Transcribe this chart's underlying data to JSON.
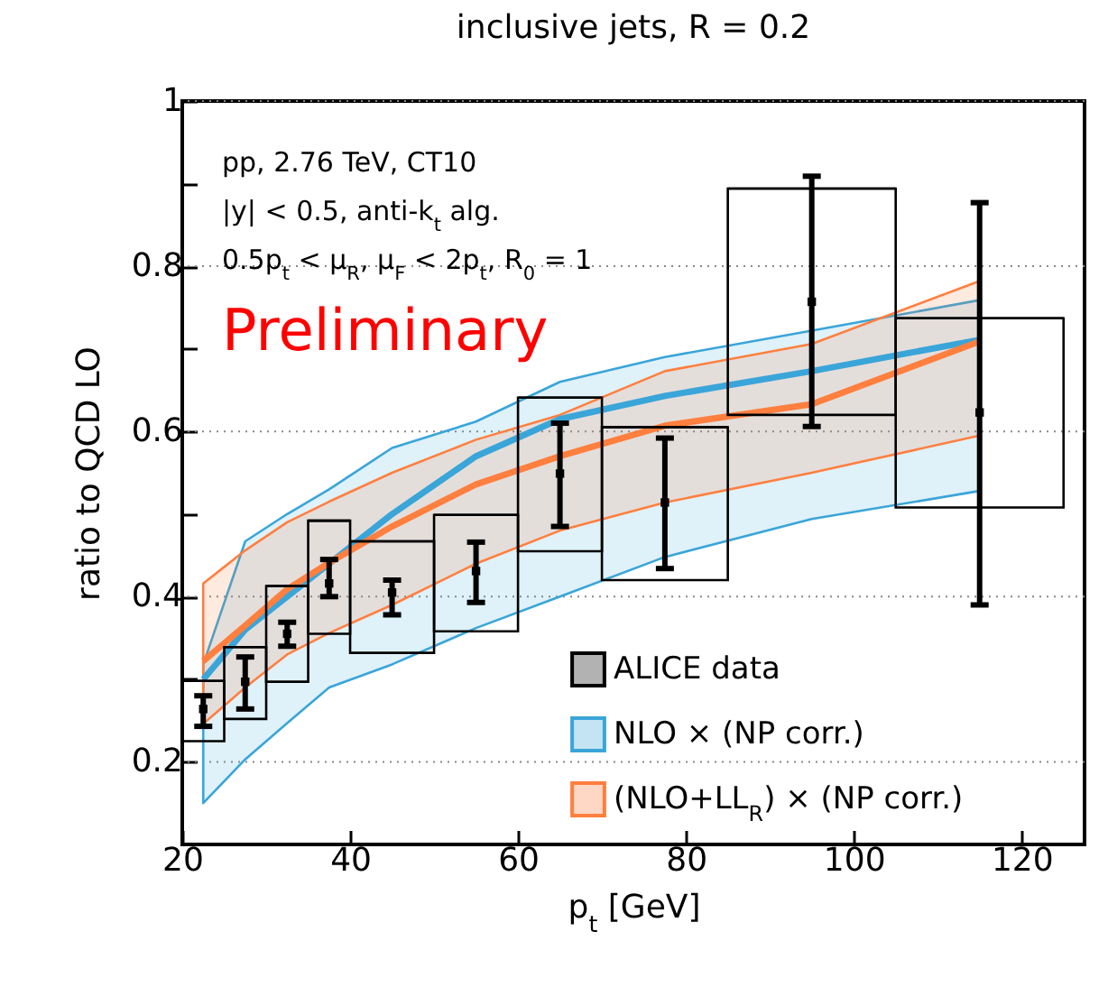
{
  "chart_data": {
    "type": "line",
    "title": "inclusive jets, R = 0.2",
    "xlabel": "p$_{t}$ [GeV]",
    "ylabel": "ratio to QCD LO",
    "xlim": [
      20,
      127.5
    ],
    "ylim": [
      0.1,
      1
    ],
    "xticks": [
      20,
      40,
      60,
      80,
      100,
      120
    ],
    "yticks": [
      0.2,
      {
        "value": 0.3,
        "label": null
      },
      0.4,
      {
        "value": 0.5,
        "label": null
      },
      0.6,
      {
        "value": 0.7,
        "label": null
      },
      0.8,
      {
        "value": 0.9,
        "label": null
      },
      1
    ],
    "grid": true,
    "legend": "bottom right",
    "annotations": [
      "pp, 2.76 TeV, CT10",
      "|y| < 0.5, anti-k$_{t}$ alg.",
      "0.5p$_{t}$ < μ$_{R}$, μ$_{F}$ < 2p$_{t}$, R$_{0}$ = 1",
      "Preliminary"
    ],
    "series": [
      {
        "type": "scatter",
        "name": "ALICE data",
        "color": "#000000",
        "x": [
          22.5,
          27.5,
          32.5,
          37.5,
          45,
          55,
          65,
          77.5,
          95,
          115
        ],
        "values": [
          0.264,
          0.297,
          0.355,
          0.416,
          0.405,
          0.431,
          0.549,
          0.514,
          0.757,
          0.623
        ],
        "errors": [
          [
            0.243,
            0.28
          ],
          [
            0.264,
            0.327
          ],
          [
            0.34,
            0.369
          ],
          [
            0.4,
            0.445
          ],
          [
            0.378,
            0.42
          ],
          [
            0.393,
            0.466
          ],
          [
            0.485,
            0.61
          ],
          [
            0.434,
            0.592
          ],
          [
            0.606,
            0.909
          ],
          [
            0.39,
            0.877
          ]
        ]
      },
      {
        "type": "bar",
        "color": "#000000",
        "x": [
          22.5,
          27.5,
          32.5,
          37.5,
          45,
          55,
          65,
          77.5,
          95,
          115
        ],
        "xerrors": [
          [
            20,
            25
          ],
          [
            25,
            30
          ],
          [
            30,
            35
          ],
          [
            35,
            40
          ],
          [
            40,
            50
          ],
          [
            50,
            60
          ],
          [
            60,
            70
          ],
          [
            70,
            85
          ],
          [
            85,
            105
          ],
          [
            105,
            125
          ]
        ],
        "base": [
          0.225,
          0.252,
          0.297,
          0.355,
          0.332,
          0.358,
          0.455,
          0.42,
          0.62,
          0.508
        ],
        "values": [
          0.073,
          0.087,
          0.116,
          0.137,
          0.135,
          0.141,
          0.186,
          0.185,
          0.274,
          0.229
        ]
      },
      {
        "name": "NLO × (NP corr.)",
        "color": "#3aa5d8",
        "x": [
          22.5,
          27.5,
          32.5,
          37.5,
          45,
          55,
          65,
          77.5,
          95,
          115
        ],
        "values": [
          0.3,
          0.36,
          0.4,
          0.44,
          0.5,
          0.57,
          0.615,
          0.643,
          0.673,
          0.711
        ],
        "lower": [
          0.15,
          0.203,
          0.247,
          0.29,
          0.318,
          0.362,
          0.4,
          0.448,
          0.494,
          0.528
        ],
        "upper": [
          0.318,
          0.467,
          0.5,
          0.53,
          0.58,
          0.612,
          0.66,
          0.69,
          0.722,
          0.759
        ]
      },
      {
        "name": "(NLO+LL$_{R}$) × (NP corr.)",
        "color": "#ff7f3f",
        "x": [
          22.5,
          27.5,
          32.5,
          37.5,
          45,
          55,
          65,
          77.5,
          95,
          115
        ],
        "values": [
          0.322,
          0.365,
          0.409,
          0.441,
          0.485,
          0.536,
          0.57,
          0.607,
          0.633,
          0.709
        ],
        "lower": [
          0.246,
          0.29,
          0.33,
          0.356,
          0.39,
          0.44,
          0.48,
          0.514,
          0.55,
          0.595
        ],
        "upper": [
          0.416,
          0.456,
          0.49,
          0.515,
          0.55,
          0.59,
          0.62,
          0.673,
          0.706,
          0.782
        ]
      }
    ]
  }
}
